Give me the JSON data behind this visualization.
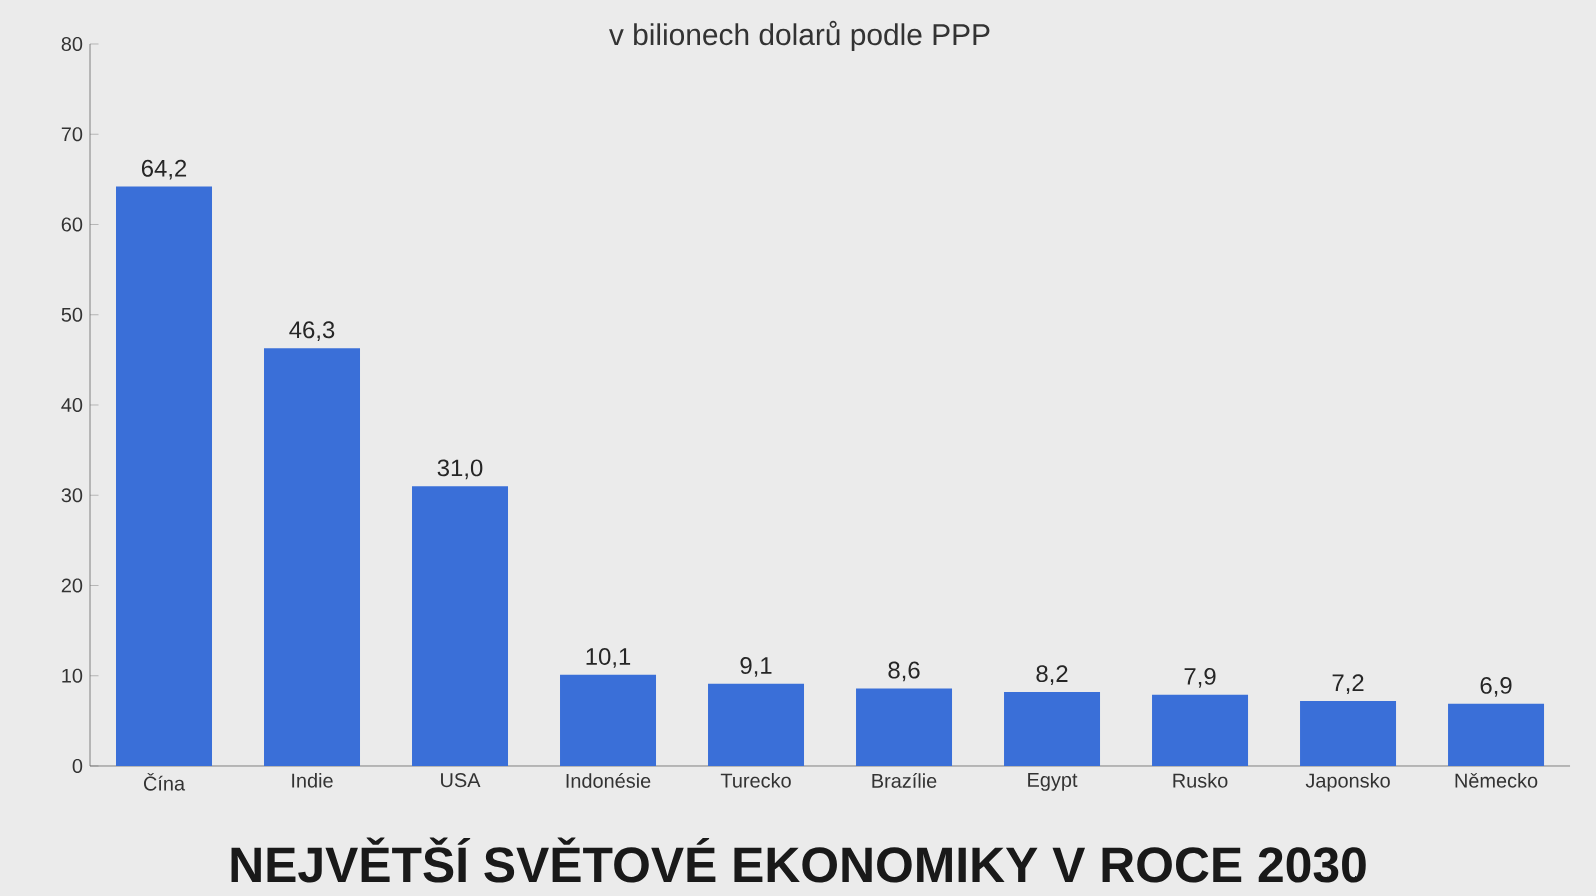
{
  "chart_data": {
    "type": "bar",
    "title": "NEJVĚTŠÍ SVĚTOVÉ EKONOMIKY V ROCE 2030",
    "subtitle": "v bilionech dolarů podle PPP",
    "categories": [
      "Čína",
      "Indie",
      "USA",
      "Indonésie",
      "Turecko",
      "Brazílie",
      "Egypt",
      "Rusko",
      "Japonsko",
      "Německo"
    ],
    "values": [
      64.2,
      46.3,
      31.0,
      10.1,
      9.1,
      8.6,
      8.2,
      7.9,
      7.2,
      6.9
    ],
    "value_labels": [
      "64,2",
      "46,3",
      "31,0",
      "10,1",
      "9,1",
      "8,6",
      "8,2",
      "7,9",
      "7,2",
      "6,9"
    ],
    "color": "#3a6fd8",
    "ylim": [
      0,
      80
    ],
    "yticks": [
      0,
      10,
      20,
      30,
      40,
      50,
      60,
      70,
      80
    ]
  }
}
